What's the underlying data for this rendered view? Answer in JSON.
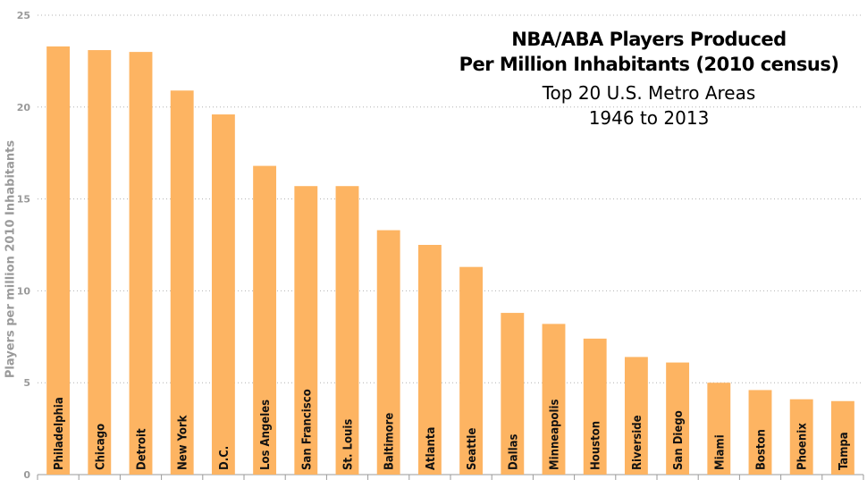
{
  "chart_data": {
    "type": "bar",
    "title_lines": [
      "NBA/ABA Players Produced",
      "Per Million Inhabitants (2010 census)"
    ],
    "subtitle_lines": [
      "Top 20 U.S. Metro Areas",
      "1946 to 2013"
    ],
    "xlabel": "",
    "ylabel": "Players per million 2010 Inhabitants",
    "ylim": [
      0,
      25
    ],
    "yticks": [
      0,
      5,
      10,
      15,
      20,
      25
    ],
    "grid": true,
    "bar_color": "#FDB462",
    "categories": [
      "Philadelphia",
      "Chicago",
      "Detroit",
      "New York",
      "D.C.",
      "Los Angeles",
      "San Francisco",
      "St. Louis",
      "Baltimore",
      "Atlanta",
      "Seattle",
      "Dallas",
      "Minneapolis",
      "Houston",
      "Riverside",
      "San Diego",
      "Miami",
      "Boston",
      "Phoenix",
      "Tampa"
    ],
    "values": [
      23.3,
      23.1,
      23.0,
      20.9,
      19.6,
      16.8,
      15.7,
      15.7,
      13.3,
      12.5,
      11.3,
      8.8,
      8.2,
      7.4,
      6.4,
      6.1,
      5.0,
      4.6,
      4.1,
      4.0
    ]
  }
}
